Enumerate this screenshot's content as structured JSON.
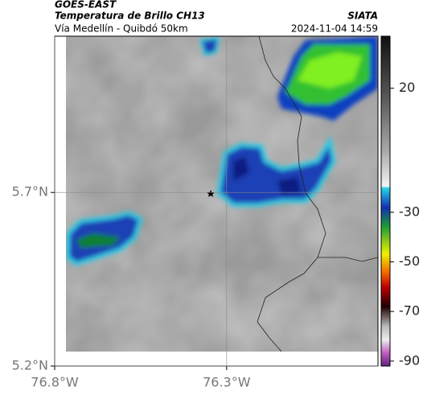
{
  "header": {
    "title": "GOES-EAST",
    "subtitle": "Temperatura de Brillo CH13",
    "location": "Vía Medellín - Quibdó 50km",
    "source": "SIATA",
    "timestamp": "2024-11-04 14:59"
  },
  "map": {
    "xlim": [
      -76.8,
      -75.86
    ],
    "ylim": [
      5.2,
      6.15
    ],
    "xticks": [
      {
        "value": -76.8,
        "label": "76.8°W"
      },
      {
        "value": -76.3,
        "label": "76.3°W"
      }
    ],
    "yticks": [
      {
        "value": 5.7,
        "label": "5.7°N"
      },
      {
        "value": 5.2,
        "label": "5.2°N"
      }
    ]
  },
  "colorbar": {
    "lim": [
      -92,
      41
    ],
    "ticks": [
      20,
      -30,
      -50,
      -70,
      -90
    ]
  }
}
